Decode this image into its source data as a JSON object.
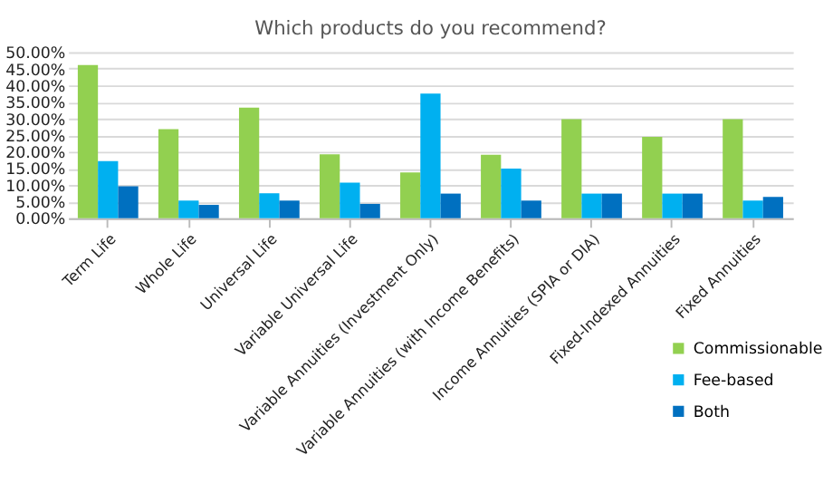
{
  "chart_data": {
    "type": "bar",
    "title": "Which products do you recommend?",
    "categories": [
      "Term Life",
      "Whole Life",
      "Universal Life",
      "Variable Universal Life",
      "Variable Annuities (Investment Only)",
      "Variable Annuities (with Income Benefits)",
      "Income Annuities (SPIA or DIA)",
      "Fixed-Indexed Annuities",
      "Fixed Annuities"
    ],
    "series": [
      {
        "name": "Commissionable",
        "color": "#92d050",
        "values": [
          46.1,
          26.8,
          33.3,
          19.2,
          13.8,
          19.1,
          29.8,
          24.5,
          29.8
        ]
      },
      {
        "name": "Fee-based",
        "color": "#00b0f0",
        "values": [
          17.2,
          5.3,
          7.5,
          10.7,
          37.5,
          14.9,
          7.4,
          7.4,
          5.3
        ]
      },
      {
        "name": "Both",
        "color": "#0070c0",
        "values": [
          9.6,
          4.0,
          5.3,
          4.3,
          7.4,
          5.3,
          7.4,
          7.4,
          6.4
        ]
      }
    ],
    "ylim": [
      0,
      50
    ],
    "yticks": [
      {
        "value": 0,
        "label": "0.00%"
      },
      {
        "value": 5,
        "label": "5.00%"
      },
      {
        "value": 10,
        "label": "10.00%"
      },
      {
        "value": 15,
        "label": "15.00%"
      },
      {
        "value": 20,
        "label": "20.00%"
      },
      {
        "value": 25,
        "label": "25.00%"
      },
      {
        "value": 30,
        "label": "30.00%"
      },
      {
        "value": 35,
        "label": "35.00%"
      },
      {
        "value": 40,
        "label": "40.00%"
      },
      {
        "value": 45,
        "label": "45.00%"
      },
      {
        "value": 50,
        "label": "50.00%"
      }
    ],
    "grid": "y",
    "legend": "bottom right"
  }
}
